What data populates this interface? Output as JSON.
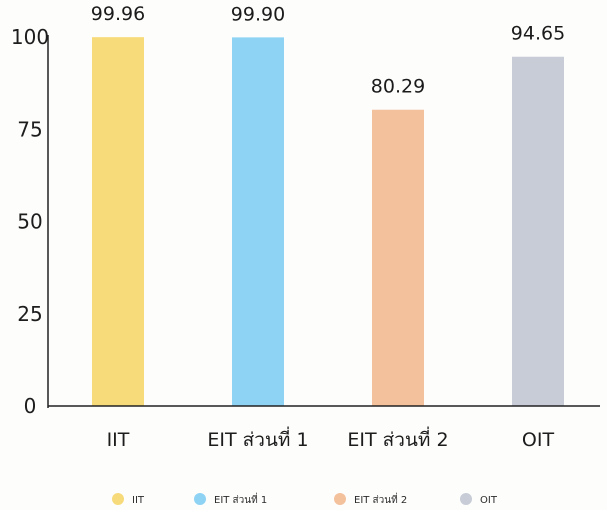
{
  "chart_data": {
    "type": "bar",
    "categories": [
      "IIT",
      "EIT ส่วนที่ 1",
      "EIT ส่วนที่ 2",
      "OIT"
    ],
    "values": [
      99.96,
      99.9,
      80.29,
      94.65
    ],
    "data_labels": [
      "99.96",
      "99.90",
      "80.29",
      "94.65"
    ],
    "colors": [
      "#f7db7b",
      "#8fd3f4",
      "#f4c19d",
      "#c7ccd6"
    ],
    "ylim": [
      0,
      100
    ],
    "yticks": [
      0,
      25,
      50,
      75,
      100
    ],
    "title": "",
    "xlabel": "",
    "ylabel": "",
    "legend": {
      "position": "bottom",
      "entries": [
        "IIT",
        "EIT ส่วนที่ 1",
        "EIT ส่วนที่ 2",
        "OIT"
      ]
    },
    "grid": false
  }
}
